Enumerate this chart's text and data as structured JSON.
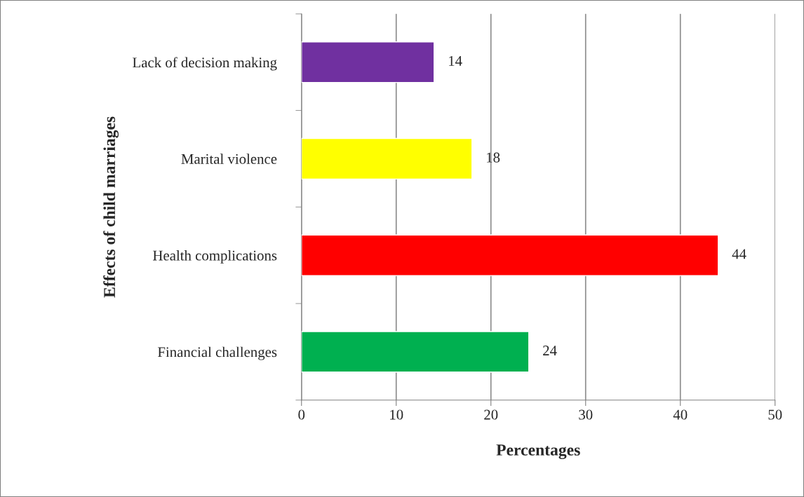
{
  "chart_data": {
    "type": "bar",
    "orientation": "horizontal",
    "xlabel": "Percentages",
    "ylabel": "Effects of child marriages",
    "categories": [
      "Lack of decision making",
      "Marital violence",
      "Health complications",
      "Financial challenges"
    ],
    "values": [
      14,
      18,
      44,
      24
    ],
    "colors": [
      "#7030a0",
      "#ffff00",
      "#ff0000",
      "#00b050"
    ],
    "xlim": [
      0,
      50
    ],
    "xticks": [
      0,
      10,
      20,
      30,
      40,
      50
    ],
    "grid": "x",
    "data_labels": true,
    "legend": false
  }
}
